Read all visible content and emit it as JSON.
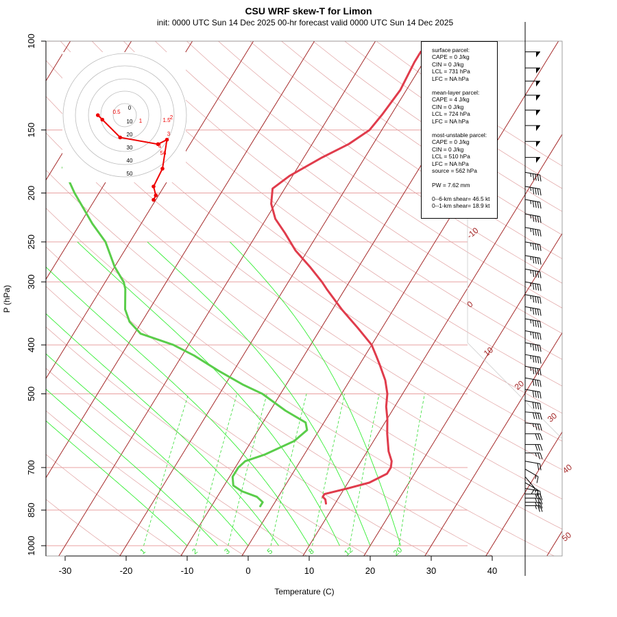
{
  "title": "CSU WRF skew-T for Limon",
  "subtitle": "init: 0000 UTC Sun 14 Dec 2025    00-hr forecast valid 0000 UTC Sun 14 Dec 2025",
  "info_box": {
    "surface": [
      "surface parcel:",
      "CAPE = 0 J/kg",
      "CIN = 0 J/kg",
      "LCL = 731 hPa",
      "LFC = NA hPa"
    ],
    "mean_layer": [
      "mean-layer parcel:",
      "CAPE = 4 J/kg",
      "CIN = 0 J/kg",
      "LCL = 724 hPa",
      "LFC = NA hPa"
    ],
    "most_unstable": [
      "most-unstable parcel:",
      "CAPE = 0 J/kg",
      "CIN = 0 J/kg",
      "LCL = 510 hPa",
      "LFC = NA hPa",
      "source = 562 hPa"
    ],
    "pw": "PW =  7.62 mm",
    "shear": [
      "0--6-km shear= 46.5 kt",
      "0--1-km shear= 18.9 kt"
    ]
  },
  "colors": {
    "temperature": "#e03c4c",
    "dewpoint": "#5acd4a",
    "isotherm": "#a52a2a",
    "isobar": "#e8a0a0",
    "dry_adiabat": "#e0a0a0",
    "moist_adiabat": "#33ee33",
    "mixing_ratio": "#33dd33",
    "hodograph": "#ee0000"
  },
  "chart_data": {
    "type": "skew-t",
    "xlabel": "Temperature (C)",
    "ylabel": "P (hPa)",
    "x_ticks": [
      -30,
      -20,
      -10,
      0,
      10,
      20,
      30,
      40
    ],
    "y_ticks": [
      100,
      150,
      200,
      250,
      300,
      400,
      500,
      700,
      850,
      1000
    ],
    "xlim": [
      -33,
      40
    ],
    "ylim": [
      1050,
      100
    ],
    "isotherm_labels": [
      -10,
      0,
      10,
      20,
      30,
      40,
      50
    ],
    "mixing_ratio_labels": [
      1,
      2,
      3,
      5,
      8,
      12,
      20
    ],
    "temperature": [
      {
        "p": 825,
        "t": 8.5
      },
      {
        "p": 810,
        "t": 8.0
      },
      {
        "p": 800,
        "t": 7.3
      },
      {
        "p": 790,
        "t": 7.3
      },
      {
        "p": 770,
        "t": 10.5
      },
      {
        "p": 750,
        "t": 13.5
      },
      {
        "p": 720,
        "t": 15.5
      },
      {
        "p": 700,
        "t": 15.5
      },
      {
        "p": 680,
        "t": 15.0
      },
      {
        "p": 650,
        "t": 13.5
      },
      {
        "p": 600,
        "t": 11.5
      },
      {
        "p": 560,
        "t": 10.0
      },
      {
        "p": 530,
        "t": 8.6
      },
      {
        "p": 500,
        "t": 7.5
      },
      {
        "p": 470,
        "t": 5.8
      },
      {
        "p": 440,
        "t": 3.5
      },
      {
        "p": 420,
        "t": 1.8
      },
      {
        "p": 400,
        "t": 0.0
      },
      {
        "p": 370,
        "t": -4.0
      },
      {
        "p": 340,
        "t": -8.5
      },
      {
        "p": 310,
        "t": -13.0
      },
      {
        "p": 300,
        "t": -14.5
      },
      {
        "p": 280,
        "t": -18.0
      },
      {
        "p": 260,
        "t": -22.0
      },
      {
        "p": 240,
        "t": -25.5
      },
      {
        "p": 225,
        "t": -28.5
      },
      {
        "p": 210,
        "t": -30.7
      },
      {
        "p": 196,
        "t": -32.0
      },
      {
        "p": 185,
        "t": -30.5
      },
      {
        "p": 170,
        "t": -27.0
      },
      {
        "p": 160,
        "t": -24.0
      },
      {
        "p": 150,
        "t": -22.0
      },
      {
        "p": 140,
        "t": -21.5
      },
      {
        "p": 125,
        "t": -21.0
      },
      {
        "p": 110,
        "t": -21.5
      },
      {
        "p": 105,
        "t": -21.5
      }
    ],
    "dewpoint": [
      {
        "p": 835,
        "t": -2.0
      },
      {
        "p": 820,
        "t": -2.0
      },
      {
        "p": 800,
        "t": -3.5
      },
      {
        "p": 780,
        "t": -6.5
      },
      {
        "p": 760,
        "t": -8.5
      },
      {
        "p": 730,
        "t": -9.5
      },
      {
        "p": 700,
        "t": -9.5
      },
      {
        "p": 680,
        "t": -9.0
      },
      {
        "p": 660,
        "t": -6.5
      },
      {
        "p": 620,
        "t": -3.0
      },
      {
        "p": 590,
        "t": -2.0
      },
      {
        "p": 570,
        "t": -3.0
      },
      {
        "p": 540,
        "t": -7.5
      },
      {
        "p": 500,
        "t": -13.0
      },
      {
        "p": 480,
        "t": -17.0
      },
      {
        "p": 450,
        "t": -22.5
      },
      {
        "p": 420,
        "t": -28.0
      },
      {
        "p": 400,
        "t": -32.5
      },
      {
        "p": 380,
        "t": -39.0
      },
      {
        "p": 360,
        "t": -42.0
      },
      {
        "p": 340,
        "t": -44.0
      },
      {
        "p": 310,
        "t": -46.0
      },
      {
        "p": 300,
        "t": -47.0
      },
      {
        "p": 280,
        "t": -50.0
      },
      {
        "p": 250,
        "t": -54.0
      },
      {
        "p": 230,
        "t": -58.0
      },
      {
        "p": 200,
        "t": -64.0
      },
      {
        "p": 185,
        "t": -67.0
      },
      {
        "p": 178,
        "t": -68.5
      }
    ],
    "hodograph": {
      "ring_labels": [
        "0",
        "10",
        "20",
        "30",
        "40",
        "50"
      ],
      "point_labels": [
        "0.5",
        "1",
        "1.5",
        "2",
        "3",
        "4",
        "56"
      ],
      "trace": [
        {
          "u": -4.5,
          "v": 0.0
        },
        {
          "u": -3.5,
          "v": -1.0
        },
        {
          "u": 0.5,
          "v": -5.0
        },
        {
          "u": 9.0,
          "v": -6.5
        },
        {
          "u": 11.0,
          "v": -5.5
        },
        {
          "u": 10.0,
          "v": -12.0
        },
        {
          "u": 8.0,
          "v": -16.0
        },
        {
          "u": 8.5,
          "v": -18.0
        },
        {
          "u": 8.0,
          "v": -19.0
        }
      ]
    },
    "wind_barbs": [
      {
        "p": 105,
        "speed": 50,
        "dir": 270
      },
      {
        "p": 113,
        "speed": 50,
        "dir": 270
      },
      {
        "p": 120,
        "speed": 50,
        "dir": 270
      },
      {
        "p": 128,
        "speed": 50,
        "dir": 270
      },
      {
        "p": 137,
        "speed": 50,
        "dir": 270
      },
      {
        "p": 147,
        "speed": 50,
        "dir": 270
      },
      {
        "p": 158,
        "speed": 50,
        "dir": 270
      },
      {
        "p": 170,
        "speed": 50,
        "dir": 270
      },
      {
        "p": 182,
        "speed": 45,
        "dir": 280
      },
      {
        "p": 194,
        "speed": 45,
        "dir": 280
      },
      {
        "p": 206,
        "speed": 45,
        "dir": 280
      },
      {
        "p": 220,
        "speed": 45,
        "dir": 280
      },
      {
        "p": 234,
        "speed": 45,
        "dir": 280
      },
      {
        "p": 250,
        "speed": 45,
        "dir": 280
      },
      {
        "p": 266,
        "speed": 45,
        "dir": 280
      },
      {
        "p": 283,
        "speed": 45,
        "dir": 280
      },
      {
        "p": 300,
        "speed": 45,
        "dir": 280
      },
      {
        "p": 318,
        "speed": 45,
        "dir": 280
      },
      {
        "p": 336,
        "speed": 45,
        "dir": 280
      },
      {
        "p": 355,
        "speed": 45,
        "dir": 280
      },
      {
        "p": 375,
        "speed": 45,
        "dir": 280
      },
      {
        "p": 396,
        "speed": 45,
        "dir": 280
      },
      {
        "p": 418,
        "speed": 45,
        "dir": 280
      },
      {
        "p": 441,
        "speed": 45,
        "dir": 280
      },
      {
        "p": 465,
        "speed": 40,
        "dir": 280
      },
      {
        "p": 490,
        "speed": 40,
        "dir": 280
      },
      {
        "p": 516,
        "speed": 40,
        "dir": 280
      },
      {
        "p": 543,
        "speed": 40,
        "dir": 275
      },
      {
        "p": 571,
        "speed": 35,
        "dir": 275
      },
      {
        "p": 600,
        "speed": 30,
        "dir": 270
      },
      {
        "p": 630,
        "speed": 30,
        "dir": 270
      },
      {
        "p": 655,
        "speed": 25,
        "dir": 270
      },
      {
        "p": 680,
        "speed": 20,
        "dir": 280
      },
      {
        "p": 705,
        "speed": 15,
        "dir": 300
      },
      {
        "p": 730,
        "speed": 10,
        "dir": 320
      },
      {
        "p": 750,
        "speed": 15,
        "dir": 300
      },
      {
        "p": 770,
        "speed": 20,
        "dir": 280
      },
      {
        "p": 790,
        "speed": 25,
        "dir": 270
      },
      {
        "p": 805,
        "speed": 25,
        "dir": 270
      },
      {
        "p": 820,
        "speed": 25,
        "dir": 270
      },
      {
        "p": 833,
        "speed": 25,
        "dir": 270
      }
    ]
  }
}
